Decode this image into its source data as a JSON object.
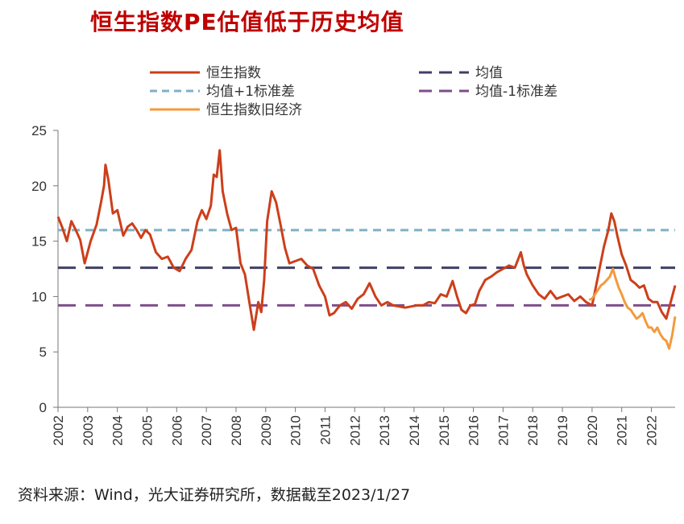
{
  "title": "恒生指数PE估值低于历史均值",
  "source": "资料来源：Wind，光大证券研究所，数据截至2023/1/27",
  "colors": {
    "hsi": "#cc3f1a",
    "old_economy": "#f39a3e",
    "mean": "#3f3f66",
    "plus1": "#7fb1c8",
    "minus1": "#7d4e8a"
  },
  "legend": [
    {
      "key": "hsi",
      "label": "恒生指数",
      "style": "solid"
    },
    {
      "key": "mean",
      "label": "均值",
      "style": "dash"
    },
    {
      "key": "plus1",
      "label": "均值+1标准差",
      "style": "dash"
    },
    {
      "key": "minus1",
      "label": "均值-1标准差",
      "style": "dash"
    },
    {
      "key": "old_economy",
      "label": "恒生指数旧经济",
      "style": "solid"
    }
  ],
  "chart_data": {
    "type": "line",
    "xlim": [
      2002.0,
      2022.8
    ],
    "ylim": [
      0,
      25
    ],
    "x_ticks": [
      "2002",
      "2003",
      "2004",
      "2005",
      "2006",
      "2007",
      "2008",
      "2009",
      "2010",
      "2011",
      "2012",
      "2013",
      "2014",
      "2015",
      "2016",
      "2017",
      "2018",
      "2019",
      "2020",
      "2021",
      "2022"
    ],
    "y_ticks": [
      "0",
      "5",
      "10",
      "15",
      "20",
      "25"
    ],
    "reference_lines": [
      {
        "name": "均值",
        "value": 12.6
      },
      {
        "name": "均值+1标准差",
        "value": 16.0
      },
      {
        "name": "均值-1标准差",
        "value": 9.2
      }
    ],
    "series": [
      {
        "name": "恒生指数",
        "x": [
          2002.0,
          2002.15,
          2002.3,
          2002.45,
          2002.6,
          2002.75,
          2002.9,
          2003.1,
          2003.3,
          2003.45,
          2003.55,
          2003.6,
          2003.7,
          2003.85,
          2004.0,
          2004.2,
          2004.35,
          2004.5,
          2004.65,
          2004.8,
          2004.95,
          2005.1,
          2005.3,
          2005.5,
          2005.7,
          2005.9,
          2006.1,
          2006.3,
          2006.5,
          2006.7,
          2006.85,
          2007.0,
          2007.15,
          2007.25,
          2007.35,
          2007.45,
          2007.55,
          2007.7,
          2007.85,
          2008.0,
          2008.15,
          2008.3,
          2008.45,
          2008.6,
          2008.75,
          2008.85,
          2008.95,
          2009.05,
          2009.2,
          2009.35,
          2009.5,
          2009.65,
          2009.8,
          2010.0,
          2010.2,
          2010.4,
          2010.6,
          2010.8,
          2011.0,
          2011.15,
          2011.3,
          2011.5,
          2011.7,
          2011.9,
          2012.1,
          2012.3,
          2012.5,
          2012.7,
          2012.9,
          2013.1,
          2013.3,
          2013.5,
          2013.7,
          2013.9,
          2014.1,
          2014.3,
          2014.5,
          2014.7,
          2014.9,
          2015.1,
          2015.3,
          2015.45,
          2015.6,
          2015.75,
          2015.9,
          2016.05,
          2016.2,
          2016.4,
          2016.6,
          2016.8,
          2017.0,
          2017.2,
          2017.4,
          2017.6,
          2017.7,
          2017.8,
          2018.0,
          2018.2,
          2018.4,
          2018.6,
          2018.8,
          2019.0,
          2019.2,
          2019.4,
          2019.6,
          2019.8,
          2020.0,
          2020.1,
          2020.25,
          2020.4,
          2020.55,
          2020.65,
          2020.75,
          2020.85,
          2021.0,
          2021.15,
          2021.3,
          2021.45,
          2021.6,
          2021.75,
          2021.9,
          2022.05,
          2022.2,
          2022.35,
          2022.5,
          2022.65,
          2022.8
        ],
        "y": [
          17.2,
          16.2,
          15.0,
          16.8,
          16.0,
          15.1,
          13.0,
          15.0,
          16.5,
          18.5,
          20.0,
          21.9,
          20.5,
          17.5,
          17.8,
          15.5,
          16.3,
          16.6,
          16.0,
          15.3,
          16.0,
          15.6,
          14.0,
          13.4,
          13.6,
          12.6,
          12.3,
          13.4,
          14.2,
          16.8,
          17.8,
          17.0,
          18.2,
          21.0,
          20.8,
          23.2,
          19.5,
          17.5,
          16.0,
          16.2,
          13.0,
          12.0,
          9.5,
          7.0,
          9.5,
          8.6,
          11.5,
          16.8,
          19.5,
          18.5,
          16.5,
          14.4,
          13.0,
          13.2,
          13.4,
          12.8,
          12.5,
          11.0,
          10.0,
          8.3,
          8.5,
          9.2,
          9.5,
          8.9,
          9.8,
          10.2,
          11.2,
          10.0,
          9.2,
          9.5,
          9.2,
          9.1,
          9.0,
          9.1,
          9.2,
          9.2,
          9.5,
          9.4,
          10.2,
          10.0,
          11.4,
          10.0,
          8.8,
          8.5,
          9.2,
          9.3,
          10.5,
          11.5,
          11.8,
          12.2,
          12.5,
          12.8,
          12.6,
          14.0,
          12.8,
          12.0,
          11.0,
          10.2,
          9.8,
          10.5,
          9.8,
          10.0,
          10.2,
          9.6,
          10.0,
          9.5,
          9.2,
          10.5,
          12.5,
          14.5,
          16.0,
          17.5,
          16.8,
          15.5,
          13.8,
          12.8,
          11.5,
          11.2,
          10.8,
          11.0,
          9.8,
          9.5,
          9.5,
          8.6,
          8.0,
          9.5,
          11.0
        ]
      },
      {
        "name": "恒生指数旧经济",
        "x": [
          2019.9,
          2020.0,
          2020.1,
          2020.2,
          2020.3,
          2020.4,
          2020.5,
          2020.6,
          2020.7,
          2020.8,
          2020.9,
          2021.0,
          2021.1,
          2021.2,
          2021.3,
          2021.4,
          2021.5,
          2021.6,
          2021.7,
          2021.8,
          2021.9,
          2022.0,
          2022.1,
          2022.2,
          2022.3,
          2022.4,
          2022.5,
          2022.6,
          2022.7,
          2022.8
        ],
        "y": [
          9.7,
          9.8,
          10.2,
          10.6,
          11.0,
          11.2,
          11.5,
          11.8,
          12.5,
          11.6,
          10.8,
          10.2,
          9.5,
          9.0,
          8.8,
          8.4,
          8.0,
          8.2,
          8.5,
          7.8,
          7.2,
          7.2,
          6.8,
          7.2,
          6.6,
          6.2,
          6.0,
          5.3,
          6.5,
          8.2
        ]
      }
    ]
  }
}
